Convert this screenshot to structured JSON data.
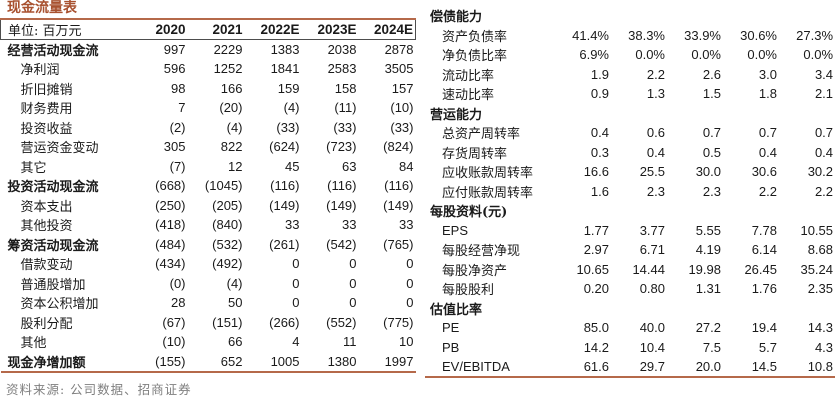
{
  "cashflow_table": {
    "title": "现金流量表",
    "unit_label": "单位: 百万元",
    "years": [
      "2020",
      "2021",
      "2022E",
      "2023E",
      "2024E"
    ],
    "rows": [
      {
        "label": "经营活动现金流",
        "bold": true,
        "values": [
          "997",
          "2229",
          "1383",
          "2038",
          "2878"
        ]
      },
      {
        "label": "净利润",
        "bold": false,
        "values": [
          "596",
          "1252",
          "1841",
          "2583",
          "3505"
        ]
      },
      {
        "label": "折旧摊销",
        "bold": false,
        "values": [
          "98",
          "166",
          "159",
          "158",
          "157"
        ]
      },
      {
        "label": "财务费用",
        "bold": false,
        "values": [
          "7",
          "(20)",
          "(4)",
          "(11)",
          "(10)"
        ]
      },
      {
        "label": "投资收益",
        "bold": false,
        "values": [
          "(2)",
          "(4)",
          "(33)",
          "(33)",
          "(33)"
        ]
      },
      {
        "label": "营运资金变动",
        "bold": false,
        "values": [
          "305",
          "822",
          "(624)",
          "(723)",
          "(824)"
        ]
      },
      {
        "label": "其它",
        "bold": false,
        "values": [
          "(7)",
          "12",
          "45",
          "63",
          "84"
        ]
      },
      {
        "label": "投资活动现金流",
        "bold": true,
        "values": [
          "(668)",
          "(1045)",
          "(116)",
          "(116)",
          "(116)"
        ]
      },
      {
        "label": "资本支出",
        "bold": false,
        "values": [
          "(250)",
          "(205)",
          "(149)",
          "(149)",
          "(149)"
        ]
      },
      {
        "label": "其他投资",
        "bold": false,
        "values": [
          "(418)",
          "(840)",
          "33",
          "33",
          "33"
        ]
      },
      {
        "label": "筹资活动现金流",
        "bold": true,
        "values": [
          "(484)",
          "(532)",
          "(261)",
          "(542)",
          "(765)"
        ]
      },
      {
        "label": "借款变动",
        "bold": false,
        "values": [
          "(434)",
          "(492)",
          "0",
          "0",
          "0"
        ]
      },
      {
        "label": "普通股增加",
        "bold": false,
        "values": [
          "(0)",
          "(4)",
          "0",
          "0",
          "0"
        ]
      },
      {
        "label": "资本公积增加",
        "bold": false,
        "values": [
          "28",
          "50",
          "0",
          "0",
          "0"
        ]
      },
      {
        "label": "股利分配",
        "bold": false,
        "values": [
          "(67)",
          "(151)",
          "(266)",
          "(552)",
          "(775)"
        ]
      },
      {
        "label": "其他",
        "bold": false,
        "values": [
          "(10)",
          "66",
          "4",
          "11",
          "10"
        ]
      },
      {
        "label": "现金净增加额",
        "bold": true,
        "values": [
          "(155)",
          "652",
          "1005",
          "1380",
          "1997"
        ]
      }
    ],
    "source_note": "资料来源: 公司数据、招商证券"
  },
  "ratio_table": {
    "sections": [
      {
        "header": "偿债能力",
        "rows": [
          {
            "label": "资产负债率",
            "values": [
              "41.4%",
              "38.3%",
              "33.9%",
              "30.6%",
              "27.3%"
            ]
          },
          {
            "label": "净负债比率",
            "values": [
              "6.9%",
              "0.0%",
              "0.0%",
              "0.0%",
              "0.0%"
            ]
          },
          {
            "label": "流动比率",
            "values": [
              "1.9",
              "2.2",
              "2.6",
              "3.0",
              "3.4"
            ]
          },
          {
            "label": "速动比率",
            "values": [
              "0.9",
              "1.3",
              "1.5",
              "1.8",
              "2.1"
            ]
          }
        ]
      },
      {
        "header": "营运能力",
        "rows": [
          {
            "label": "总资产周转率",
            "values": [
              "0.4",
              "0.6",
              "0.7",
              "0.7",
              "0.7"
            ]
          },
          {
            "label": "存货周转率",
            "values": [
              "0.3",
              "0.4",
              "0.5",
              "0.4",
              "0.4"
            ]
          },
          {
            "label": "应收账款周转率",
            "values": [
              "16.6",
              "25.5",
              "30.0",
              "30.6",
              "30.2"
            ]
          },
          {
            "label": "应付账款周转率",
            "values": [
              "1.6",
              "2.3",
              "2.3",
              "2.2",
              "2.2"
            ]
          }
        ]
      },
      {
        "header": "每股资料(元)",
        "rows": [
          {
            "label": "EPS",
            "values": [
              "1.77",
              "3.77",
              "5.55",
              "7.78",
              "10.55"
            ]
          },
          {
            "label": "每股经营净现",
            "values": [
              "2.97",
              "6.71",
              "4.19",
              "6.14",
              "8.68"
            ]
          },
          {
            "label": "每股净资产",
            "values": [
              "10.65",
              "14.44",
              "19.98",
              "26.45",
              "35.24"
            ]
          },
          {
            "label": "每股股利",
            "values": [
              "0.20",
              "0.80",
              "1.31",
              "1.76",
              "2.35"
            ]
          }
        ]
      },
      {
        "header": "估值比率",
        "rows": [
          {
            "label": "PE",
            "values": [
              "85.0",
              "40.0",
              "27.2",
              "19.4",
              "14.3"
            ]
          },
          {
            "label": "PB",
            "values": [
              "14.2",
              "10.4",
              "7.5",
              "5.7",
              "4.3"
            ]
          },
          {
            "label": "EV/EBITDA",
            "values": [
              "61.6",
              "29.7",
              "20.0",
              "14.5",
              "10.8"
            ]
          }
        ]
      }
    ]
  },
  "colors": {
    "accent_title": "#a8512f",
    "rule_orange": "#b5694a",
    "header_border": "#4d4d4d",
    "text": "#1a1a1a",
    "source_gray": "#7f7f7f"
  }
}
